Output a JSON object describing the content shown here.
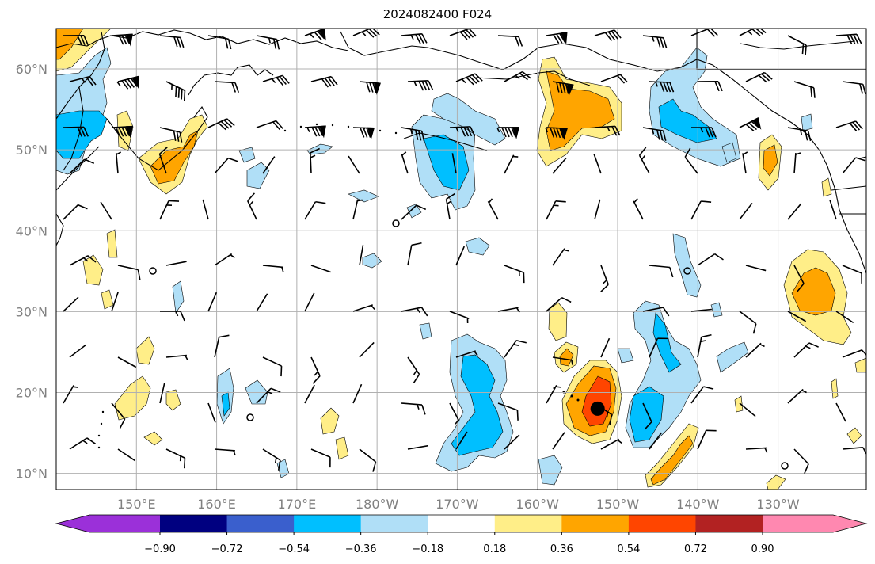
{
  "title": "2024082400 F024",
  "map": {
    "lat_labels": [
      "60°N",
      "50°N",
      "40°N",
      "30°N",
      "20°N",
      "10°N"
    ],
    "lon_labels": [
      "150°E",
      "160°E",
      "170°E",
      "180°W",
      "170°W",
      "160°W",
      "150°W",
      "140°W",
      "130°W"
    ],
    "lat_values": [
      60,
      50,
      40,
      30,
      20,
      10
    ],
    "lon_values": [
      150,
      160,
      170,
      180,
      190,
      200,
      210,
      220,
      230
    ],
    "extent": {
      "lon_min": 140,
      "lon_max": 241,
      "lat_min": 8,
      "lat_max": 65
    },
    "grid": true
  },
  "colorbar": {
    "extend": "both",
    "levels": [
      "−0.90",
      "−0.72",
      "−0.54",
      "−0.36",
      "−0.18",
      "0.18",
      "0.36",
      "0.54",
      "0.72",
      "0.90"
    ],
    "colors": [
      "#9b30d9",
      "#000080",
      "#3a5fcd",
      "#00bfff",
      "#b0dff7",
      "#ffffff",
      "#ffee88",
      "#ffa500",
      "#ff4500",
      "#b22222",
      "#ff88b0"
    ]
  },
  "features": {
    "storm_marker": {
      "lon": 207.5,
      "lat": 18,
      "label": "storm-center"
    }
  }
}
